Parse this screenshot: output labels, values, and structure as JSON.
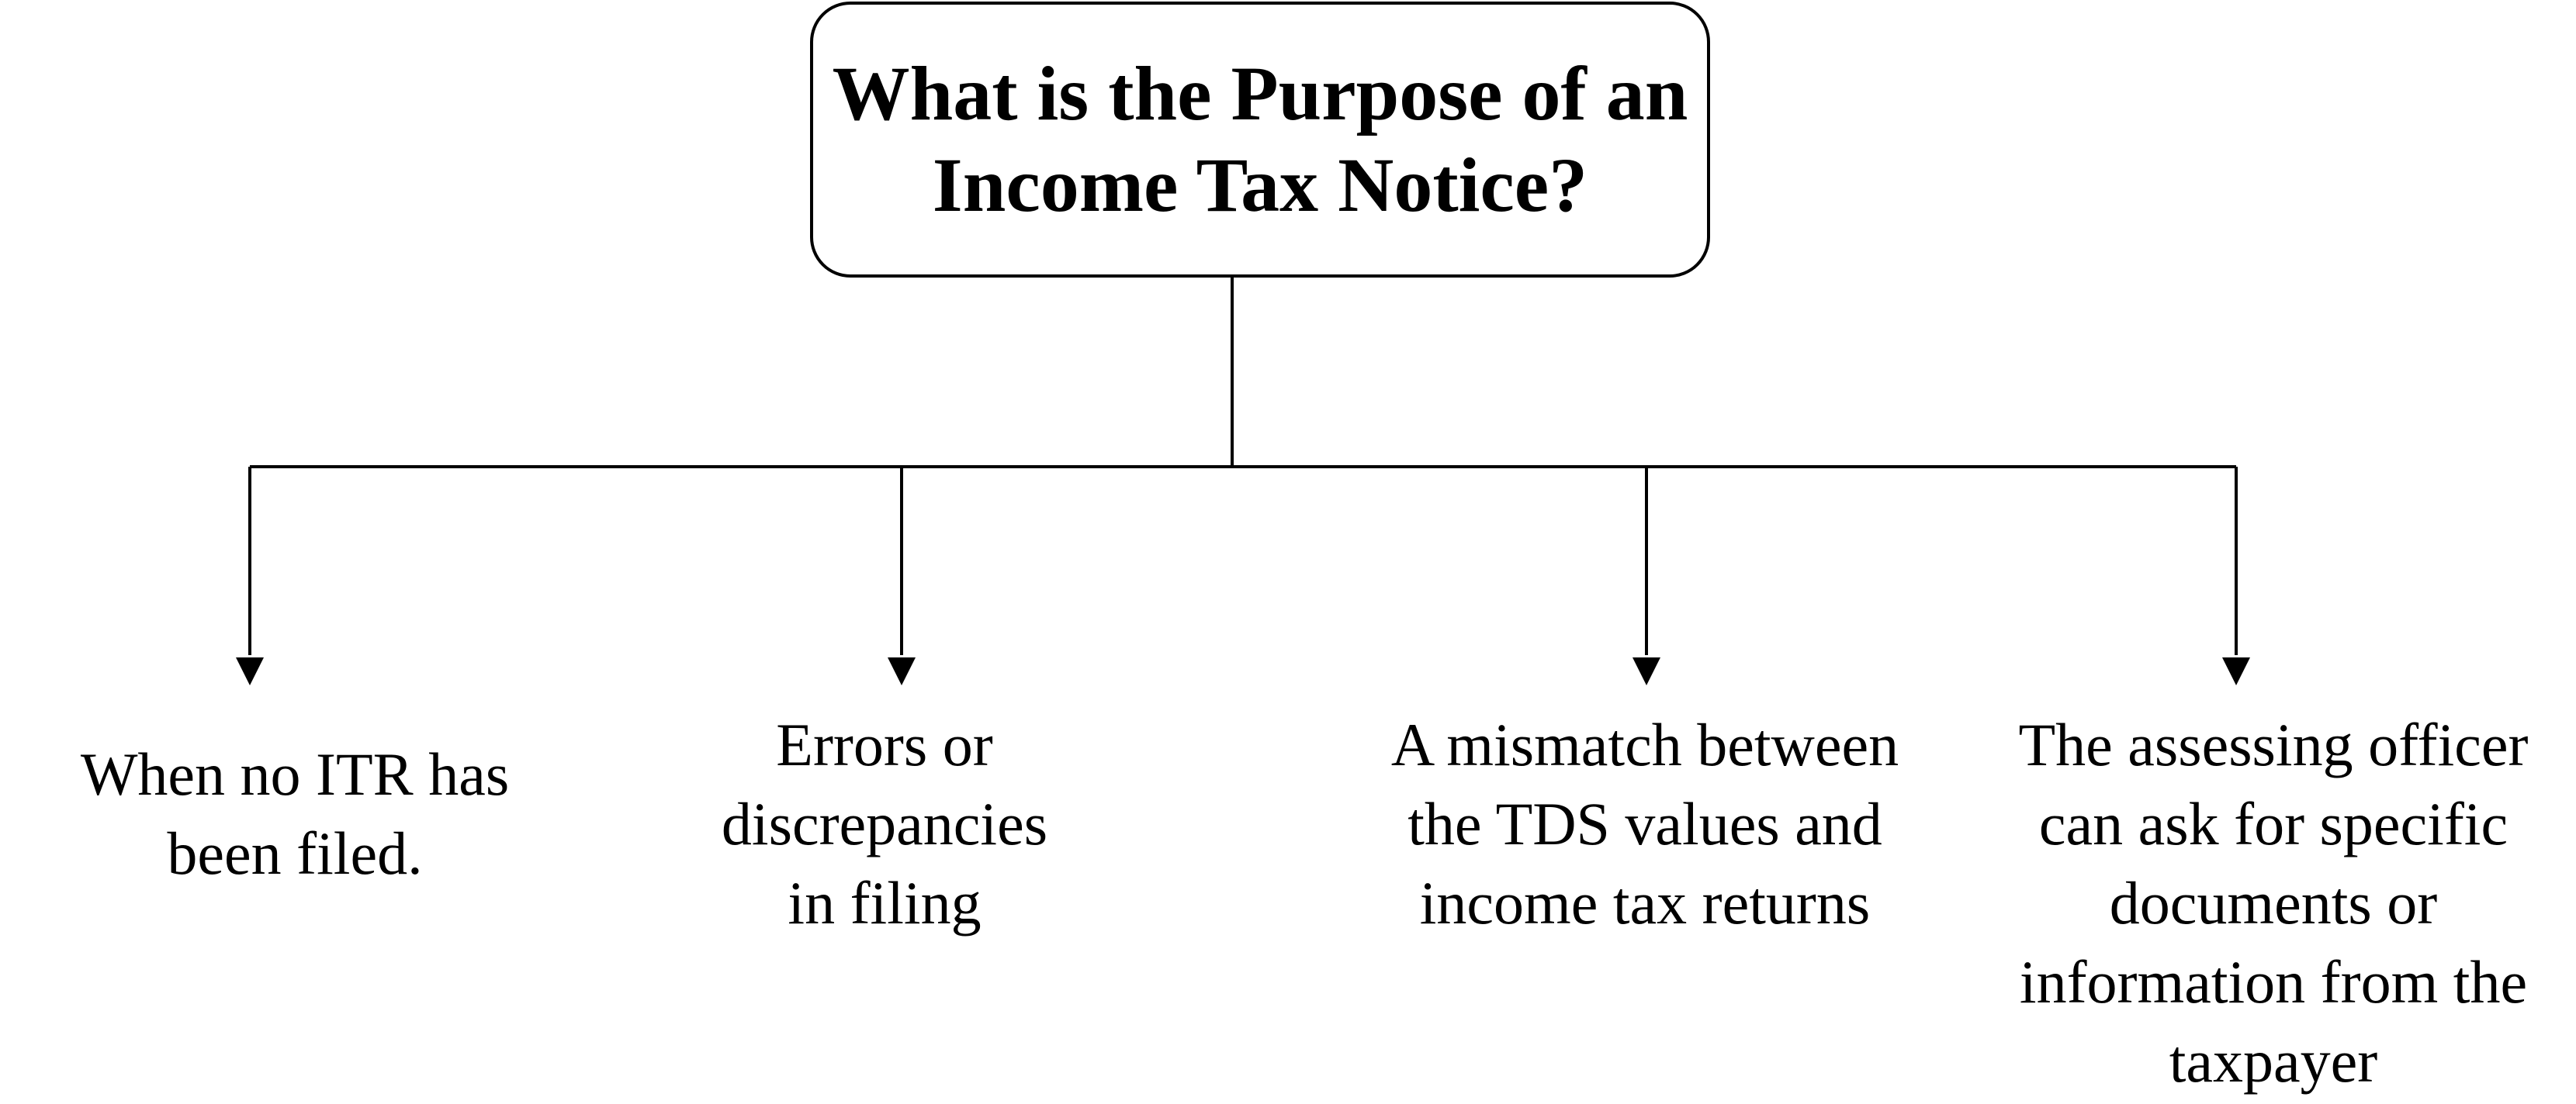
{
  "root": {
    "title_line1": "What is the Purpose of an",
    "title_line2": "Income Tax Notice?"
  },
  "branches": [
    {
      "lines": [
        "When no ITR has",
        "been filed."
      ]
    },
    {
      "lines": [
        "Errors or",
        "discrepancies",
        "in filing"
      ]
    },
    {
      "lines": [
        "A mismatch between",
        "the TDS values and",
        "income tax returns"
      ]
    },
    {
      "lines": [
        "The assessing officer",
        "can ask for specific",
        "documents or",
        "information from the",
        "taxpayer"
      ]
    }
  ],
  "colors": {
    "line": "#000000",
    "box_border": "#000000",
    "background": "#ffffff",
    "text": "#000000"
  }
}
